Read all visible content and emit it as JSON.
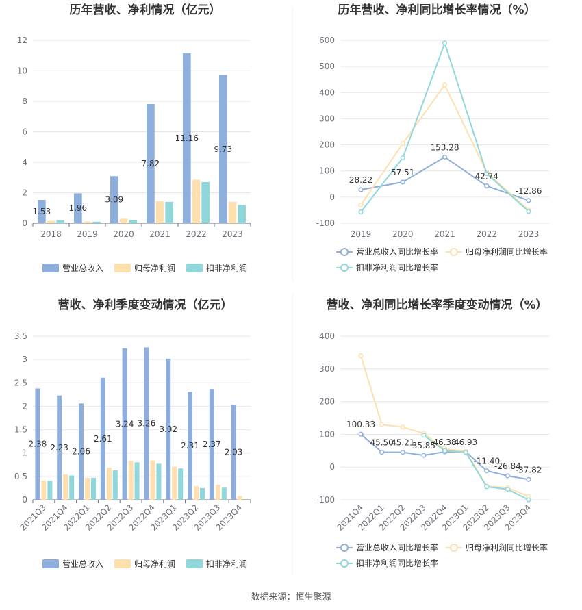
{
  "chart_data": [
    {
      "type": "bar",
      "title": "历年营收、净利情况（亿元）",
      "categories": [
        "2018",
        "2019",
        "2020",
        "2021",
        "2022",
        "2023"
      ],
      "ylim": [
        0,
        12
      ],
      "yticks": [
        "0",
        "2",
        "4",
        "6",
        "8",
        "10",
        "12"
      ],
      "grid": true,
      "legend_position": "bottom",
      "series": [
        {
          "name": "营业总收入",
          "values": [
            1.53,
            1.96,
            3.09,
            7.82,
            11.16,
            9.73
          ],
          "labels": [
            "1.53",
            "1.96",
            "3.09",
            "7.82",
            "11.16",
            "9.73"
          ]
        },
        {
          "name": "归母净利润",
          "values": [
            0.15,
            0.1,
            0.3,
            1.45,
            2.85,
            1.4
          ]
        },
        {
          "name": "扣非净利润",
          "values": [
            0.2,
            0.1,
            0.2,
            1.4,
            2.7,
            1.2
          ]
        }
      ]
    },
    {
      "type": "line",
      "title": "历年营收、净利同比增长率情况（%）",
      "categories": [
        "2019",
        "2020",
        "2021",
        "2022",
        "2023"
      ],
      "ylim": [
        -100,
        600
      ],
      "yticks": [
        "-100",
        "0",
        "100",
        "200",
        "300",
        "400",
        "500",
        "600"
      ],
      "grid": true,
      "legend_position": "bottom",
      "series": [
        {
          "name": "营业总收入同比增长率",
          "values": [
            28.22,
            57.51,
            153.28,
            42.74,
            -12.86
          ],
          "labels": [
            "28.22",
            "57.51",
            "153.28",
            "42.74",
            "-12.86"
          ]
        },
        {
          "name": "归母净利润同比增长率",
          "values": [
            -30,
            205,
            430,
            95,
            -50
          ]
        },
        {
          "name": "扣非净利润同比增长率",
          "values": [
            -57,
            150,
            590,
            90,
            -55
          ]
        }
      ]
    },
    {
      "type": "bar",
      "title": "营收、净利季度变动情况（亿元）",
      "categories": [
        "2021Q3",
        "2021Q4",
        "2022Q1",
        "2022Q2",
        "2022Q3",
        "2022Q4",
        "2023Q1",
        "2023Q2",
        "2023Q3",
        "2023Q4"
      ],
      "ylim": [
        0,
        3.5
      ],
      "yticks": [
        "0",
        "0.5",
        "1",
        "1.5",
        "2",
        "2.5",
        "3",
        "3.5"
      ],
      "grid": true,
      "legend_position": "bottom",
      "series": [
        {
          "name": "营业总收入",
          "values": [
            2.38,
            2.23,
            2.06,
            2.61,
            3.24,
            3.26,
            3.02,
            2.31,
            2.37,
            2.03
          ],
          "labels": [
            "2.38",
            "2.23",
            "2.06",
            "2.61",
            "3.24",
            "3.26",
            "3.02",
            "2.31",
            "2.37",
            "2.03"
          ]
        },
        {
          "name": "归母净利润",
          "values": [
            0.41,
            0.54,
            0.47,
            0.69,
            0.83,
            0.84,
            0.71,
            0.29,
            0.32,
            0.08
          ]
        },
        {
          "name": "扣非净利润",
          "values": [
            0.41,
            0.52,
            0.47,
            0.63,
            0.8,
            0.77,
            0.67,
            0.25,
            0.26,
            0
          ]
        }
      ]
    },
    {
      "type": "line",
      "title": "营收、净利同比增长率季度变动情况（%）",
      "categories": [
        "2021Q4",
        "2022Q1",
        "2022Q2",
        "2022Q3",
        "2022Q4",
        "2023Q1",
        "2023Q2",
        "2023Q3",
        "2023Q4"
      ],
      "ylim": [
        -100,
        400
      ],
      "yticks": [
        "-100",
        "0",
        "100",
        "200",
        "300",
        "400"
      ],
      "grid": true,
      "legend_position": "bottom",
      "series": [
        {
          "name": "营业总收入同比增长率",
          "values": [
            100.33,
            45.5,
            45.21,
            35.85,
            46.38,
            46.93,
            -11.4,
            -26.84,
            -37.82
          ],
          "labels": [
            "100.33",
            "45.50",
            "45.21",
            "35.85",
            "46.38",
            "46.93",
            "-11.40",
            "-26.84",
            "-37.82"
          ]
        },
        {
          "name": "归母净利润同比增长率",
          "values": [
            340,
            130,
            122,
            103,
            55,
            48,
            -58,
            -63,
            -90
          ]
        },
        {
          "name": "扣非净利润同比增长率",
          "values": [
            null,
            null,
            null,
            97,
            50,
            45,
            -60,
            -68,
            -100
          ]
        }
      ]
    }
  ],
  "colors": {
    "revenue": "#8eaedc",
    "parent_profit": "#fde0ad",
    "deducted_profit": "#8fd7db",
    "grid": "#e6e6e6",
    "axis": "#6e7079"
  },
  "footer": {
    "source": "数据来源：恒生聚源"
  }
}
